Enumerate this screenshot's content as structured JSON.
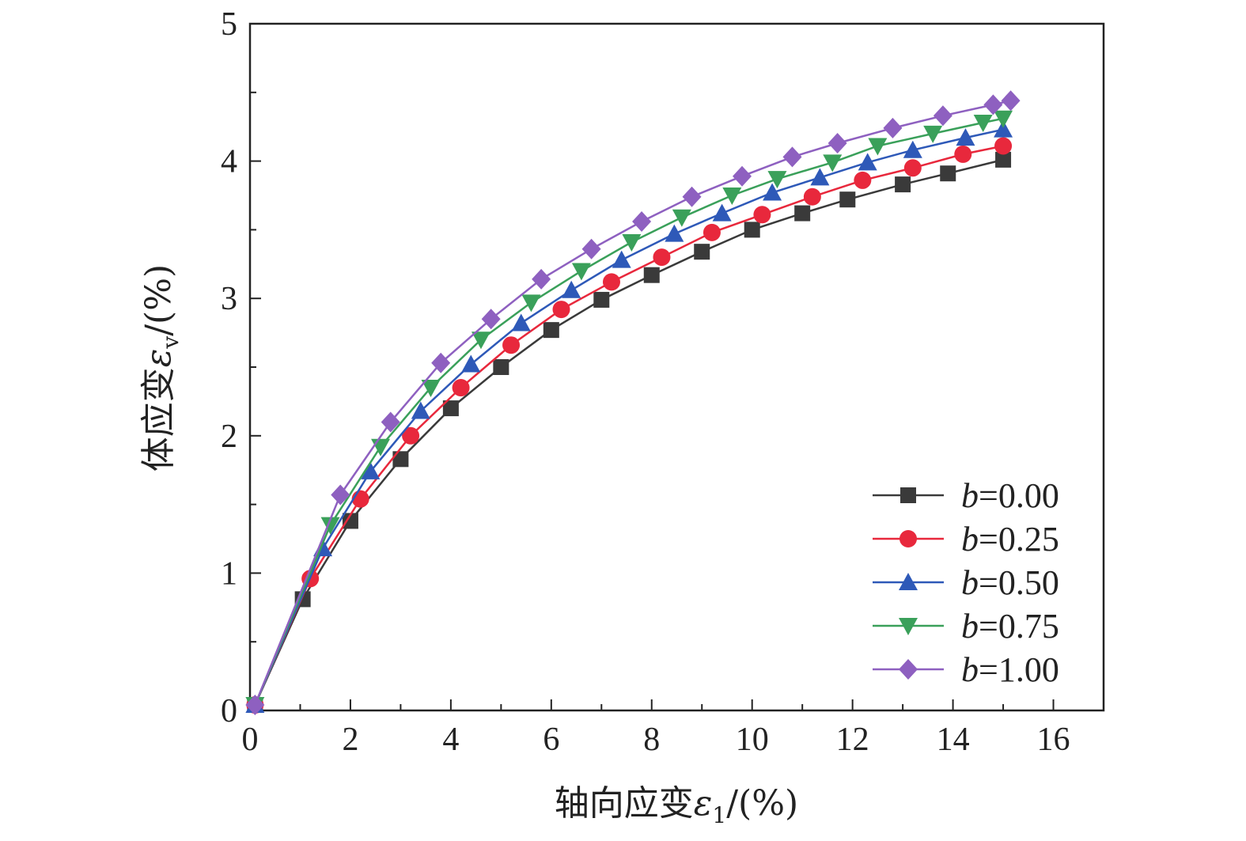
{
  "chart_data": {
    "type": "line",
    "title": "",
    "xlabel": {
      "prefix": "轴向应变",
      "symbol": "ε",
      "subscript": "1",
      "suffix": "/(%)"
    },
    "ylabel": {
      "prefix": "体应变",
      "symbol": "ε",
      "subscript": "v",
      "suffix": "/(%)"
    },
    "xlim": [
      0,
      17
    ],
    "ylim": [
      0,
      5
    ],
    "xticks": [
      0,
      2,
      4,
      6,
      8,
      10,
      12,
      14,
      16
    ],
    "yticks": [
      0,
      1,
      2,
      3,
      4,
      5
    ],
    "grid": false,
    "legend_position": "bottom-right",
    "series": [
      {
        "name": "b=0.00",
        "label_var": "b",
        "label_val": "=0.00",
        "color": "#3a3a3a",
        "marker": "square",
        "x": [
          0.1,
          1.05,
          2.0,
          3.0,
          4.0,
          5.0,
          6.0,
          7.0,
          8.0,
          9.0,
          10.0,
          11.0,
          11.9,
          13.0,
          13.9,
          15.0
        ],
        "y": [
          0.04,
          0.81,
          1.38,
          1.83,
          2.2,
          2.5,
          2.77,
          2.99,
          3.17,
          3.34,
          3.5,
          3.62,
          3.72,
          3.83,
          3.91,
          4.01
        ]
      },
      {
        "name": "b=0.25",
        "label_var": "b",
        "label_val": "=0.25",
        "color": "#e8283c",
        "marker": "circle",
        "x": [
          0.1,
          1.2,
          2.2,
          3.2,
          4.2,
          5.2,
          6.2,
          7.2,
          8.2,
          9.2,
          10.2,
          11.2,
          12.2,
          13.2,
          14.2,
          15.0
        ],
        "y": [
          0.04,
          0.96,
          1.54,
          2.0,
          2.35,
          2.66,
          2.92,
          3.12,
          3.3,
          3.48,
          3.61,
          3.74,
          3.86,
          3.95,
          4.05,
          4.11
        ]
      },
      {
        "name": "b=0.50",
        "label_var": "b",
        "label_val": "=0.50",
        "color": "#2e59b8",
        "marker": "triangle-up",
        "x": [
          0.1,
          1.45,
          2.4,
          3.4,
          4.4,
          5.4,
          6.4,
          7.4,
          8.45,
          9.4,
          10.4,
          11.35,
          12.3,
          13.2,
          14.25,
          15.0
        ],
        "y": [
          0.04,
          1.18,
          1.74,
          2.18,
          2.52,
          2.82,
          3.06,
          3.28,
          3.47,
          3.62,
          3.77,
          3.88,
          3.99,
          4.08,
          4.17,
          4.23
        ]
      },
      {
        "name": "b=0.75",
        "label_var": "b",
        "label_val": "=0.75",
        "color": "#3aa05a",
        "marker": "triangle-down",
        "x": [
          0.1,
          1.6,
          2.6,
          3.6,
          4.6,
          5.6,
          6.6,
          7.6,
          8.6,
          9.6,
          10.5,
          11.6,
          12.5,
          13.6,
          14.6,
          15.0
        ],
        "y": [
          0.04,
          1.35,
          1.92,
          2.35,
          2.7,
          2.97,
          3.2,
          3.41,
          3.59,
          3.75,
          3.87,
          3.99,
          4.11,
          4.2,
          4.28,
          4.31
        ]
      },
      {
        "name": "b=1.00",
        "label_var": "b",
        "label_val": "=1.00",
        "color": "#8e60c0",
        "marker": "diamond",
        "x": [
          0.1,
          1.8,
          2.8,
          3.8,
          4.8,
          5.8,
          6.8,
          7.8,
          8.8,
          9.8,
          10.8,
          11.7,
          12.8,
          13.8,
          14.8,
          15.15
        ],
        "y": [
          0.04,
          1.57,
          2.1,
          2.53,
          2.85,
          3.14,
          3.36,
          3.56,
          3.74,
          3.89,
          4.03,
          4.13,
          4.24,
          4.33,
          4.41,
          4.44
        ]
      }
    ]
  }
}
